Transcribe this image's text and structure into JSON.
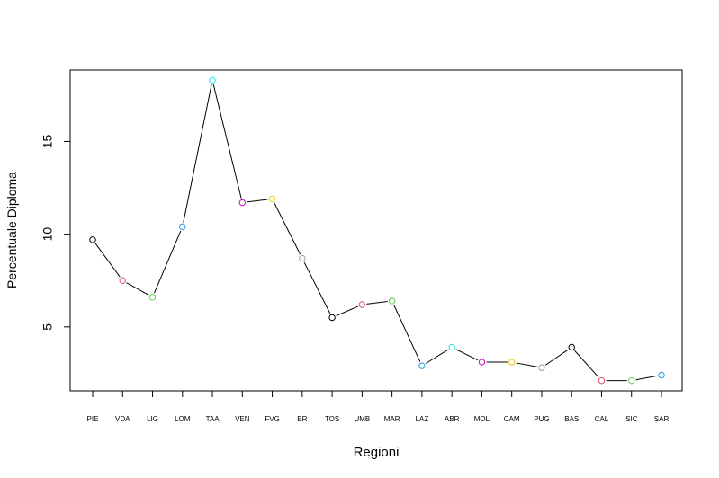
{
  "chart_data": {
    "type": "line",
    "title": "",
    "xlabel": "Regioni",
    "ylabel": "Percentuale Diploma",
    "categories": [
      "PIE",
      "VDA",
      "LIG",
      "LOM",
      "TAA",
      "VEN",
      "FVG",
      "ER",
      "TOS",
      "UMB",
      "MAR",
      "LAZ",
      "ABR",
      "MOL",
      "CAM",
      "PUG",
      "BAS",
      "CAL",
      "SIC",
      "SAR"
    ],
    "values": [
      9.7,
      7.5,
      6.6,
      10.4,
      18.3,
      11.7,
      11.9,
      8.7,
      5.5,
      6.2,
      6.4,
      2.9,
      3.9,
      3.1,
      3.1,
      2.8,
      3.9,
      2.1,
      2.1,
      2.4
    ],
    "point_colors": [
      "#000000",
      "#DF536B",
      "#61D04F",
      "#2297E6",
      "#28E2E5",
      "#CD0BBC",
      "#F5C710",
      "#9E9E9E",
      "#000000",
      "#DF536B",
      "#61D04F",
      "#2297E6",
      "#28E2E5",
      "#CD0BBC",
      "#F5C710",
      "#9E9E9E",
      "#000000",
      "#DF536B",
      "#61D04F",
      "#2297E6"
    ],
    "line_color": "#000000",
    "yticks": [
      5,
      10,
      15
    ],
    "ylim": [
      1.55,
      18.85
    ],
    "grid": false,
    "legend": "none"
  }
}
